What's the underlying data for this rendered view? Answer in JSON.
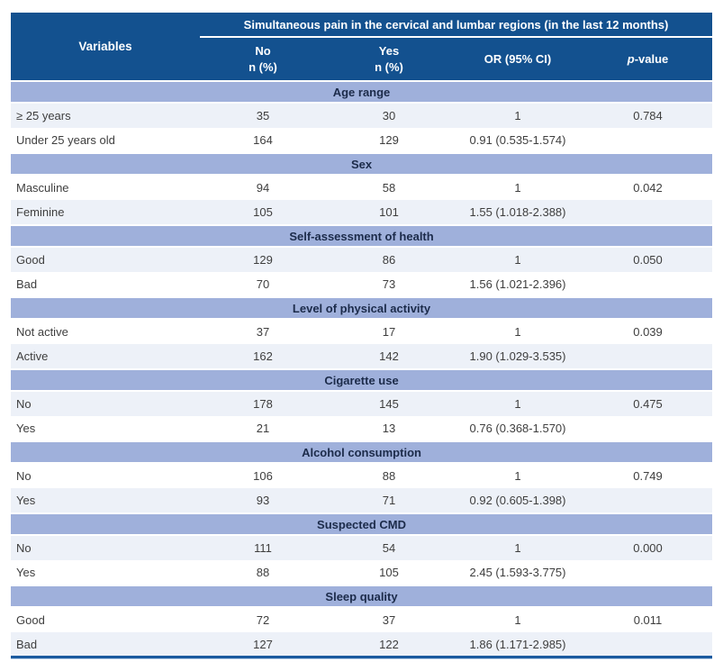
{
  "colors": {
    "header_blue": "#13518F",
    "section_band_blue": "#9FB0DB",
    "light_row": "#EDF1F8",
    "white_row": "#FFFFFF",
    "header_text": "#FFFFFF",
    "section_text": "#1C2B4A",
    "body_text": "#3E3E3E",
    "bottom_rule_blue": "#1A5A9F"
  },
  "header": {
    "variables_label": "Variables",
    "span_title": "Simultaneous pain in the cervical and lumbar regions (in the last 12 months)",
    "col_no_line1": "No",
    "col_no_line2": "n (%)",
    "col_yes_line1": "Yes",
    "col_yes_line2": "n (%)",
    "col_or": "OR (95% CI)",
    "col_p_italic": "p",
    "col_p_suffix": "-value"
  },
  "sections": [
    {
      "title": "Age range",
      "rows": [
        {
          "label": "≥ 25 years",
          "no": "35",
          "yes": "30",
          "or": "1",
          "p": "0.784"
        },
        {
          "label": "Under 25 years old",
          "no": "164",
          "yes": "129",
          "or": "0.91 (0.535-1.574)",
          "p": ""
        }
      ]
    },
    {
      "title": "Sex",
      "rows": [
        {
          "label": "Masculine",
          "no": "94",
          "yes": "58",
          "or": "1",
          "p": "0.042"
        },
        {
          "label": "Feminine",
          "no": "105",
          "yes": "101",
          "or": "1.55 (1.018-2.388)",
          "p": ""
        }
      ]
    },
    {
      "title": "Self-assessment of health",
      "rows": [
        {
          "label": "Good",
          "no": "129",
          "yes": "86",
          "or": "1",
          "p": "0.050"
        },
        {
          "label": "Bad",
          "no": "70",
          "yes": "73",
          "or": "1.56 (1.021-2.396)",
          "p": ""
        }
      ]
    },
    {
      "title": "Level of physical activity",
      "rows": [
        {
          "label": "Not active",
          "no": "37",
          "yes": "17",
          "or": "1",
          "p": "0.039"
        },
        {
          "label": "Active",
          "no": "162",
          "yes": "142",
          "or": "1.90 (1.029-3.535)",
          "p": ""
        }
      ]
    },
    {
      "title": "Cigarette use",
      "rows": [
        {
          "label": "No",
          "no": "178",
          "yes": "145",
          "or": "1",
          "p": "0.475"
        },
        {
          "label": "Yes",
          "no": "21",
          "yes": "13",
          "or": "0.76 (0.368-1.570)",
          "p": ""
        }
      ]
    },
    {
      "title": "Alcohol consumption",
      "rows": [
        {
          "label": "No",
          "no": "106",
          "yes": "88",
          "or": "1",
          "p": "0.749"
        },
        {
          "label": "Yes",
          "no": "93",
          "yes": "71",
          "or": "0.92 (0.605-1.398)",
          "p": ""
        }
      ]
    },
    {
      "title": "Suspected CMD",
      "rows": [
        {
          "label": "No",
          "no": "111",
          "yes": "54",
          "or": "1",
          "p": "0.000"
        },
        {
          "label": "Yes",
          "no": "88",
          "yes": "105",
          "or": "2.45 (1.593-3.775)",
          "p": ""
        }
      ]
    },
    {
      "title": "Sleep quality",
      "rows": [
        {
          "label": "Good",
          "no": "72",
          "yes": "37",
          "or": "1",
          "p": "0.011"
        },
        {
          "label": "Bad",
          "no": "127",
          "yes": "122",
          "or": "1.86 (1.171-2.985)",
          "p": ""
        }
      ]
    }
  ]
}
